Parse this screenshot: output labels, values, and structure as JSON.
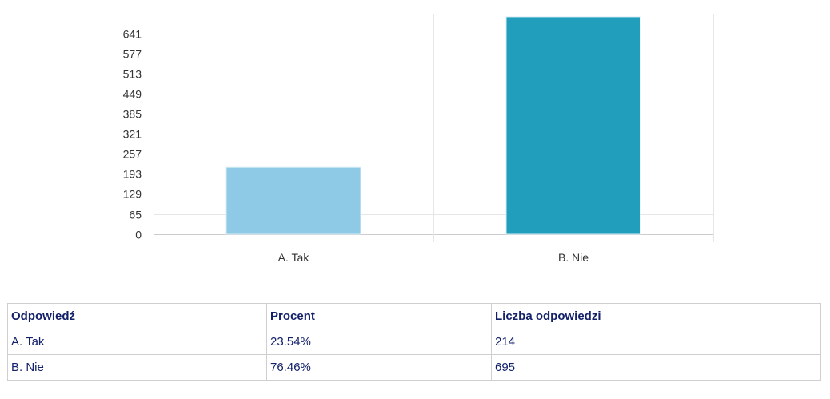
{
  "chart_data": {
    "type": "bar",
    "categories": [
      "A. Tak",
      "B. Nie"
    ],
    "values": [
      214,
      695
    ],
    "colors": [
      "#8ecae6",
      "#219ebc"
    ],
    "yticks": [
      0,
      65,
      129,
      193,
      257,
      321,
      385,
      449,
      513,
      577,
      641
    ],
    "ylim": [
      0,
      705
    ],
    "grid": true,
    "legend": "none"
  },
  "table": {
    "headers": [
      "Odpowiedź",
      "Procent",
      "Liczba odpowiedzi"
    ],
    "rows": [
      [
        "A. Tak",
        "23.54%",
        "214"
      ],
      [
        "B. Nie",
        "76.46%",
        "695"
      ]
    ]
  }
}
